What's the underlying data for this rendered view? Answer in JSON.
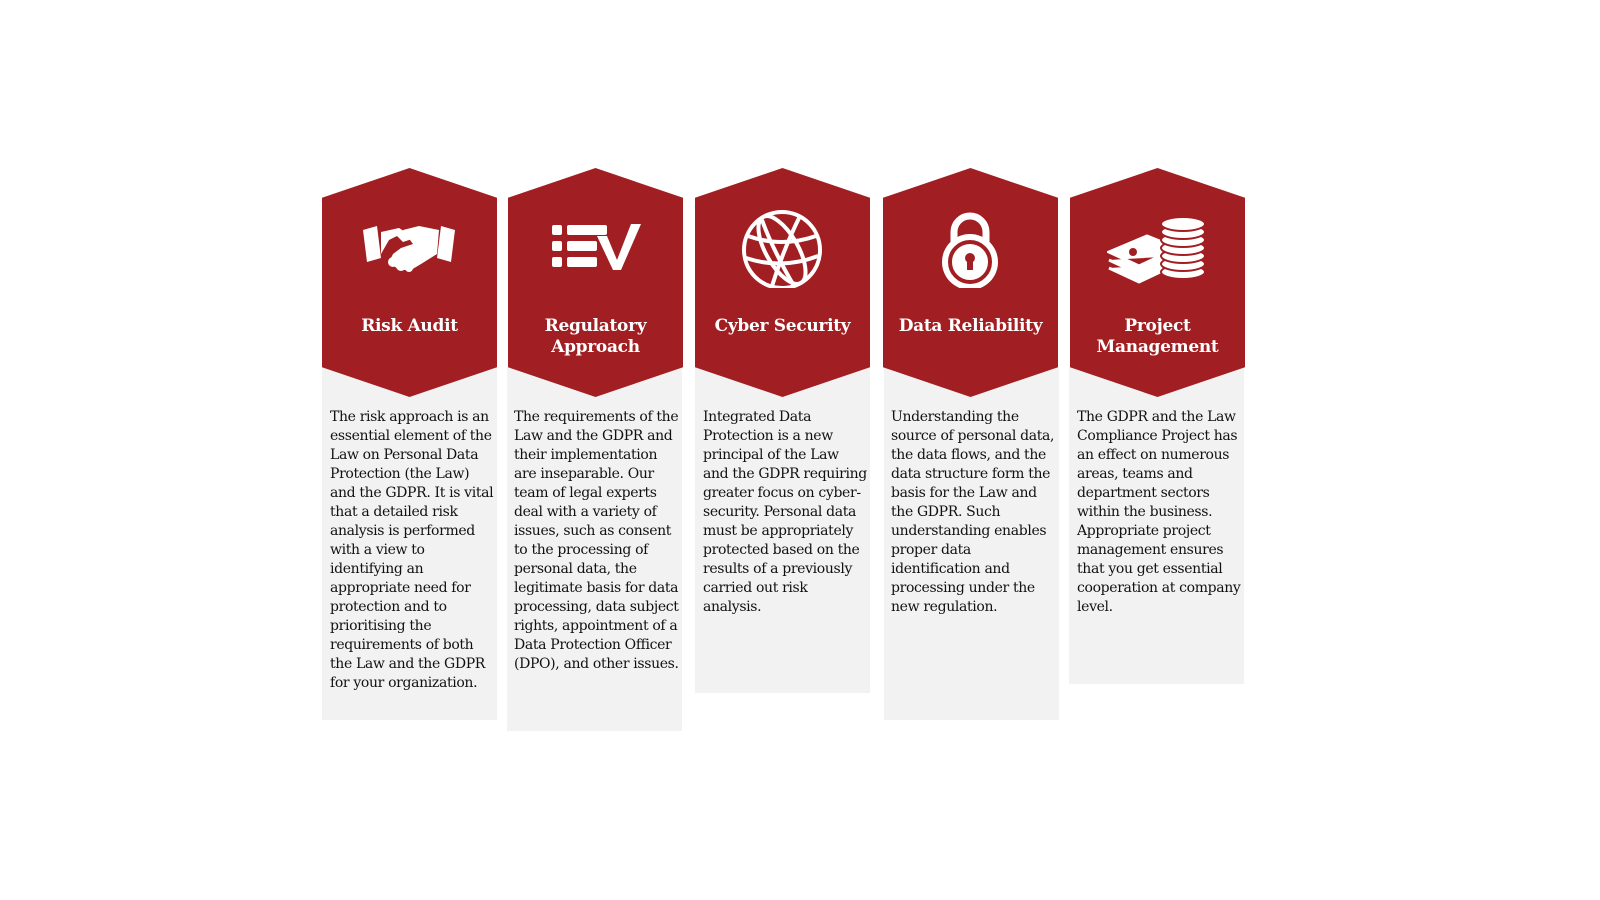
{
  "theme_color": "#a11f22",
  "cards": [
    {
      "icon": "handshake-icon",
      "title": "Risk Audit",
      "text": "The risk approach is an essential element of the Law on Personal Data Protection (the Law) and the GDPR. It is vital that a detailed risk analysis is performed with a view to identifying an appropriate need for protection and to prioritising the requirements of both the Law and the GDPR for your organization."
    },
    {
      "icon": "checklist-icon",
      "title": "Regulatory Approach",
      "text": "The requirements of the Law and the GDPR and their implementation are inseparable.  Our team of legal experts deal with a variety of issues, such as consent to the processing of personal data,  the legitimate basis for data processing, data subject rights, appointment of a Data Protection Officer (DPO), and other issues."
    },
    {
      "icon": "globe-icon",
      "title": "Cyber Security",
      "text": "Integrated Data Protection is a new principal of the Law and the GDPR requiring greater focus on cyber-security. Personal data must be appropriately protected based on the results of a previously carried out risk analysis."
    },
    {
      "icon": "padlock-icon",
      "title": "Data Reliability",
      "text": "Understanding the source of personal data, the data flows, and the data structure form the basis for the Law and the GDPR. Such understanding enables proper data identification and processing under the new regulation."
    },
    {
      "icon": "money-stack-icon",
      "title": "Project Management",
      "text": "The GDPR and the Law Compliance Project has an effect on numerous areas, teams and department sectors within the business.  Appropriate project management ensures that you get essential cooperation at company level."
    }
  ]
}
